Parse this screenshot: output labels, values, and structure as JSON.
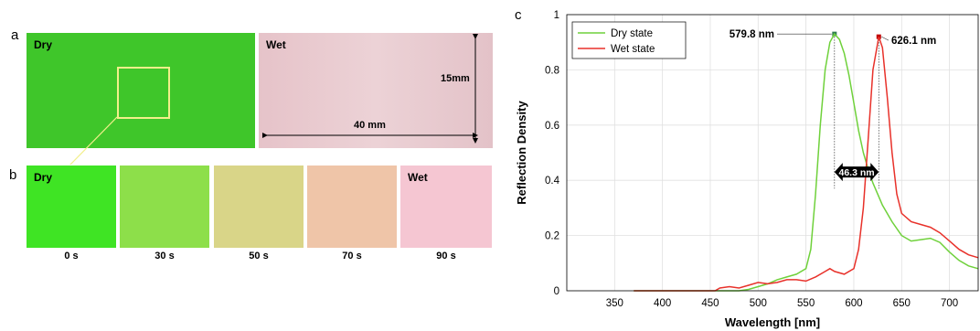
{
  "panels": {
    "a": "a",
    "b": "b",
    "c": "c"
  },
  "panel_a": {
    "dry_label": "Dry",
    "wet_label": "Wet",
    "width_label": "40 mm",
    "height_label": "15mm",
    "colors": {
      "dry": "#3fc62a",
      "wet": "#e8c9cf"
    }
  },
  "panel_b": {
    "frames": [
      {
        "tag": "Dry",
        "time": "0 s",
        "color": "#3fe424"
      },
      {
        "tag": "",
        "time": "30 s",
        "color": "#8ddf4a"
      },
      {
        "tag": "",
        "time": "50 s",
        "color": "#d9d588"
      },
      {
        "tag": "",
        "time": "70 s",
        "color": "#efc5a8"
      },
      {
        "tag": "Wet",
        "time": "90 s",
        "color": "#f5c6d2"
      }
    ]
  },
  "chart_data": {
    "type": "line",
    "title": "",
    "xlabel": "Wavelength [nm]",
    "ylabel": "Reflection Density",
    "xlim": [
      300,
      730
    ],
    "ylim": [
      0,
      1
    ],
    "xticks": [
      350,
      400,
      450,
      500,
      550,
      600,
      650,
      700
    ],
    "yticks": [
      0,
      0.2,
      0.4,
      0.6,
      0.8,
      1
    ],
    "ytick_labels": [
      "0",
      "0.2",
      "0.4",
      "0.6",
      "0.8",
      "1"
    ],
    "grid": true,
    "legend_position": "top-left",
    "series": [
      {
        "name": "Dry state",
        "color": "#6fd13b",
        "points": [
          [
            370,
            0
          ],
          [
            430,
            0
          ],
          [
            460,
            0
          ],
          [
            480,
            0
          ],
          [
            490,
            0.005
          ],
          [
            500,
            0.015
          ],
          [
            510,
            0.025
          ],
          [
            520,
            0.04
          ],
          [
            530,
            0.05
          ],
          [
            540,
            0.06
          ],
          [
            550,
            0.08
          ],
          [
            555,
            0.15
          ],
          [
            560,
            0.35
          ],
          [
            565,
            0.6
          ],
          [
            570,
            0.8
          ],
          [
            575,
            0.9
          ],
          [
            579.8,
            0.93
          ],
          [
            585,
            0.91
          ],
          [
            590,
            0.86
          ],
          [
            595,
            0.78
          ],
          [
            600,
            0.68
          ],
          [
            605,
            0.58
          ],
          [
            610,
            0.5
          ],
          [
            615,
            0.44
          ],
          [
            620,
            0.39
          ],
          [
            625,
            0.35
          ],
          [
            630,
            0.31
          ],
          [
            640,
            0.25
          ],
          [
            650,
            0.2
          ],
          [
            660,
            0.18
          ],
          [
            670,
            0.185
          ],
          [
            680,
            0.19
          ],
          [
            690,
            0.175
          ],
          [
            700,
            0.14
          ],
          [
            710,
            0.11
          ],
          [
            720,
            0.09
          ],
          [
            730,
            0.08
          ]
        ]
      },
      {
        "name": "Wet state",
        "color": "#e8312a",
        "points": [
          [
            370,
            0
          ],
          [
            430,
            0
          ],
          [
            455,
            0
          ],
          [
            460,
            0.01
          ],
          [
            470,
            0.015
          ],
          [
            480,
            0.01
          ],
          [
            490,
            0.02
          ],
          [
            500,
            0.03
          ],
          [
            510,
            0.025
          ],
          [
            520,
            0.03
          ],
          [
            530,
            0.04
          ],
          [
            540,
            0.04
          ],
          [
            550,
            0.035
          ],
          [
            560,
            0.05
          ],
          [
            570,
            0.07
          ],
          [
            575,
            0.08
          ],
          [
            580,
            0.07
          ],
          [
            590,
            0.06
          ],
          [
            600,
            0.08
          ],
          [
            605,
            0.15
          ],
          [
            610,
            0.3
          ],
          [
            615,
            0.55
          ],
          [
            620,
            0.8
          ],
          [
            626.1,
            0.92
          ],
          [
            630,
            0.88
          ],
          [
            635,
            0.7
          ],
          [
            640,
            0.5
          ],
          [
            645,
            0.35
          ],
          [
            650,
            0.28
          ],
          [
            660,
            0.25
          ],
          [
            670,
            0.24
          ],
          [
            680,
            0.23
          ],
          [
            690,
            0.21
          ],
          [
            700,
            0.18
          ],
          [
            710,
            0.15
          ],
          [
            720,
            0.13
          ],
          [
            730,
            0.12
          ]
        ]
      }
    ],
    "annotations": [
      {
        "text": "579.8 nm",
        "x": 579.8,
        "y": 0.93
      },
      {
        "text": "626.1 nm",
        "x": 626.1,
        "y": 0.92
      },
      {
        "text": "46.3 nm",
        "x": 603,
        "y": 0.43
      }
    ]
  }
}
